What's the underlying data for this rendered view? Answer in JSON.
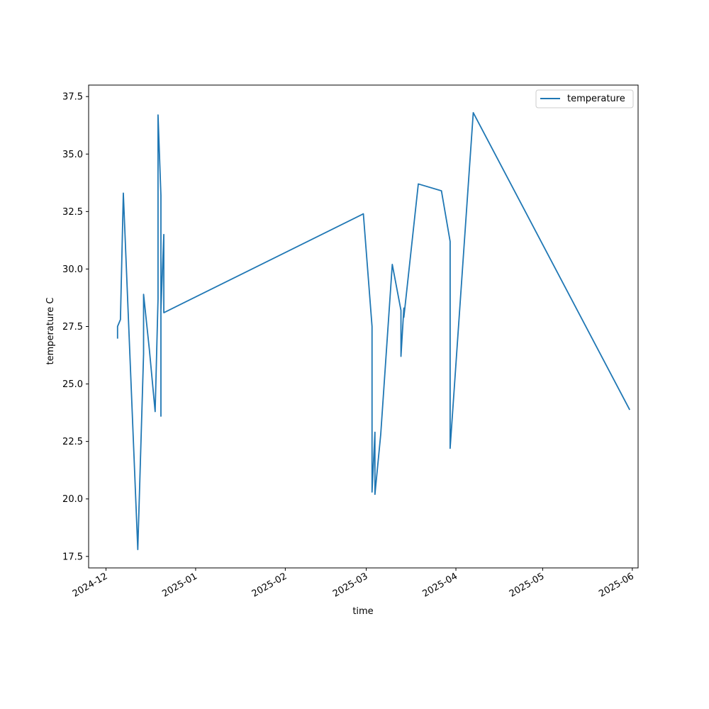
{
  "chart_data": {
    "type": "line",
    "xlabel": "time",
    "ylabel": "temperature C",
    "grid": false,
    "legend_position": "top-right",
    "x_axis_type": "date",
    "xlim": [
      "2024-11-25",
      "2025-06-03"
    ],
    "ylim": [
      17,
      38
    ],
    "x_ticks": [
      "2024-12",
      "2025-01",
      "2025-02",
      "2025-03",
      "2025-04",
      "2025-05",
      "2025-06"
    ],
    "y_ticks": [
      "17.5",
      "20.0",
      "22.5",
      "25.0",
      "27.5",
      "30.0",
      "32.5",
      "35.0",
      "37.5"
    ],
    "series": [
      {
        "name": "temperature",
        "color": "#1f77b4",
        "points": [
          {
            "x": "2024-12-05",
            "y": 27.0
          },
          {
            "x": "2024-12-05",
            "y": 27.5
          },
          {
            "x": "2024-12-06",
            "y": 27.8
          },
          {
            "x": "2024-12-07",
            "y": 33.3
          },
          {
            "x": "2024-12-12",
            "y": 17.8
          },
          {
            "x": "2024-12-14",
            "y": 26.3
          },
          {
            "x": "2024-12-14",
            "y": 28.9
          },
          {
            "x": "2024-12-16",
            "y": 26.5
          },
          {
            "x": "2024-12-18",
            "y": 23.8
          },
          {
            "x": "2024-12-19",
            "y": 28.7
          },
          {
            "x": "2024-12-19",
            "y": 33.6
          },
          {
            "x": "2024-12-19",
            "y": 28.7
          },
          {
            "x": "2024-12-19",
            "y": 36.7
          },
          {
            "x": "2024-12-20",
            "y": 33.2
          },
          {
            "x": "2024-12-20",
            "y": 23.6
          },
          {
            "x": "2024-12-20",
            "y": 26.6
          },
          {
            "x": "2024-12-20",
            "y": 28.2
          },
          {
            "x": "2024-12-21",
            "y": 31.5
          },
          {
            "x": "2024-12-21",
            "y": 28.1
          },
          {
            "x": "2025-02-28",
            "y": 32.4
          },
          {
            "x": "2025-03-03",
            "y": 27.5
          },
          {
            "x": "2025-03-03",
            "y": 20.3
          },
          {
            "x": "2025-03-03",
            "y": 20.3
          },
          {
            "x": "2025-03-04",
            "y": 22.9
          },
          {
            "x": "2025-03-04",
            "y": 20.2
          },
          {
            "x": "2025-03-06",
            "y": 22.8
          },
          {
            "x": "2025-03-10",
            "y": 30.2
          },
          {
            "x": "2025-03-13",
            "y": 28.2
          },
          {
            "x": "2025-03-13",
            "y": 26.2
          },
          {
            "x": "2025-03-14",
            "y": 28.3
          },
          {
            "x": "2025-03-14",
            "y": 27.9
          },
          {
            "x": "2025-03-19",
            "y": 33.7
          },
          {
            "x": "2025-03-27",
            "y": 33.4
          },
          {
            "x": "2025-03-30",
            "y": 31.2
          },
          {
            "x": "2025-03-30",
            "y": 22.2
          },
          {
            "x": "2025-04-07",
            "y": 36.8
          },
          {
            "x": "2025-05-31",
            "y": 23.9
          }
        ]
      }
    ]
  }
}
